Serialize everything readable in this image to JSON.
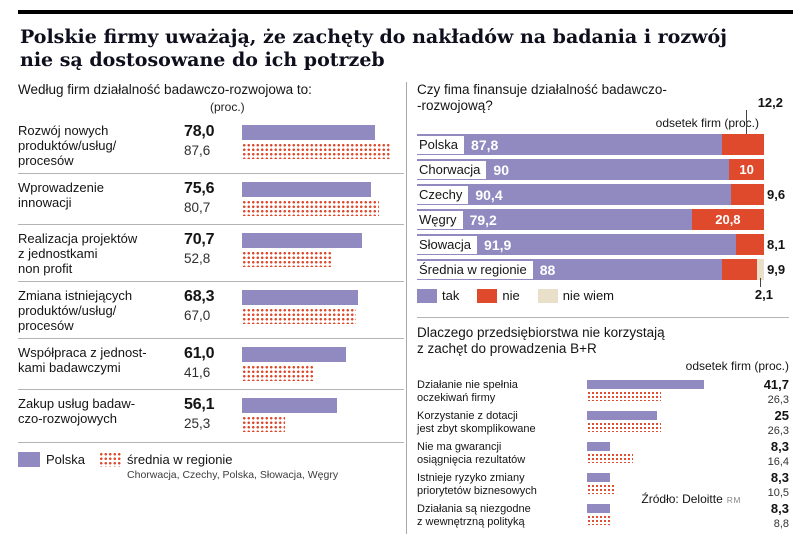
{
  "title": {
    "line1": "Polskie firmy uważają, że zachęty do nakładów na badania i rozwój",
    "line2": "nie są dostosowane do ich potrzeb"
  },
  "colors": {
    "purple": "#908ac1",
    "red": "#df4a2c",
    "beige": "#eadfc9"
  },
  "source": {
    "label": "Źródło: Deloitte",
    "mark": "RM"
  },
  "chart_data": [
    {
      "type": "bar",
      "orientation": "horizontal",
      "title": "Według firm działalność badawczo-rozwojowa to:",
      "unit_label": "(proc.)",
      "xlim": [
        0,
        100
      ],
      "legend": {
        "polska": "Polska",
        "region": "średnia w regionie",
        "note": "Chorwacja, Czechy, Polska, Słowacja, Węgry"
      },
      "series": [
        "Polska",
        "średnia w regionie"
      ],
      "rows": [
        {
          "label": "Rozwój nowych\nproduktów/usług/\nprocesów",
          "polska": 78.0,
          "polska_text": "78,0",
          "region": 87.6,
          "region_text": "87,6"
        },
        {
          "label": "Wprowadzenie\ninnowacji",
          "polska": 75.6,
          "polska_text": "75,6",
          "region": 80.7,
          "region_text": "80,7"
        },
        {
          "label": "Realizacja projektów\nz jednostkami\nnon profit",
          "polska": 70.7,
          "polska_text": "70,7",
          "region": 52.8,
          "region_text": "52,8"
        },
        {
          "label": "Zmiana istniejących\nproduktów/usług/\nprocesów",
          "polska": 68.3,
          "polska_text": "68,3",
          "region": 67.0,
          "region_text": "67,0"
        },
        {
          "label": "Współpraca z jednost-\nkami badawczymi",
          "polska": 61.0,
          "polska_text": "61,0",
          "region": 41.6,
          "region_text": "41,6"
        },
        {
          "label": "Zakup usług badaw-\nczo-rozwojowych",
          "polska": 56.1,
          "polska_text": "56,1",
          "region": 25.3,
          "region_text": "25,3"
        }
      ]
    },
    {
      "type": "stacked-bar",
      "orientation": "horizontal",
      "title": "Czy fima finansuje działalność badawczo-\n-rozwojową?",
      "unit_label": "odsetek firm (proc.)",
      "xlim": [
        0,
        100
      ],
      "legend": [
        "tak",
        "nie",
        "nie wiem"
      ],
      "rows": [
        {
          "label": "Polska",
          "tak": 87.8,
          "tak_text": "87,8",
          "nie": 12.2,
          "nie_text": "12,2",
          "nie_label": "above"
        },
        {
          "label": "Chorwacja",
          "tak": 90,
          "tak_text": "90",
          "nie": 10,
          "nie_text": "10",
          "nie_label": "inside"
        },
        {
          "label": "Czechy",
          "tak": 90.4,
          "tak_text": "90,4",
          "nie": 9.6,
          "nie_text": "9,6",
          "nie_label": "outside"
        },
        {
          "label": "Węgry",
          "tak": 79.2,
          "tak_text": "79,2",
          "nie": 20.8,
          "nie_text": "20,8",
          "nie_label": "inside"
        },
        {
          "label": "Słowacja",
          "tak": 91.9,
          "tak_text": "91,9",
          "nie": 8.1,
          "nie_text": "8,1",
          "nie_label": "outside"
        },
        {
          "label": "Średnia w regionie",
          "tak": 88,
          "tak_text": "88",
          "nie": 9.9,
          "nie_text": "9,9",
          "nie_label": "outside",
          "nie_wiem": 2.1,
          "nie_wiem_text": "2,1"
        }
      ]
    },
    {
      "type": "bar",
      "orientation": "horizontal",
      "title": "Dlaczego przedsiębiorstwa nie korzystają\nz zachęt do prowadzenia B+R",
      "unit_label": "odsetek firm (proc.)",
      "series": [
        "Polska",
        "średnia w regionie"
      ],
      "rows": [
        {
          "label": "Działanie nie spełnia\noczekiwań firmy",
          "polska": 41.7,
          "polska_text": "41,7",
          "region": 26.3,
          "region_text": "26,3"
        },
        {
          "label": "Korzystanie z dotacji\njest zbyt skomplikowane",
          "polska": 25,
          "polska_text": "25",
          "region": 26.3,
          "region_text": "26,3"
        },
        {
          "label": "Nie ma gwarancji\nosiągnięcia rezultatów",
          "polska": 8.3,
          "polska_text": "8,3",
          "region": 16.4,
          "region_text": "16,4"
        },
        {
          "label": "Istnieje ryzyko zmiany\npriorytetów biznesowych",
          "polska": 8.3,
          "polska_text": "8,3",
          "region": 10.5,
          "region_text": "10,5"
        },
        {
          "label": "Działania są niezgodne\nz wewnętrzną polityką",
          "polska": 8.3,
          "polska_text": "8,3",
          "region": 8.8,
          "region_text": "8,8"
        }
      ]
    }
  ]
}
